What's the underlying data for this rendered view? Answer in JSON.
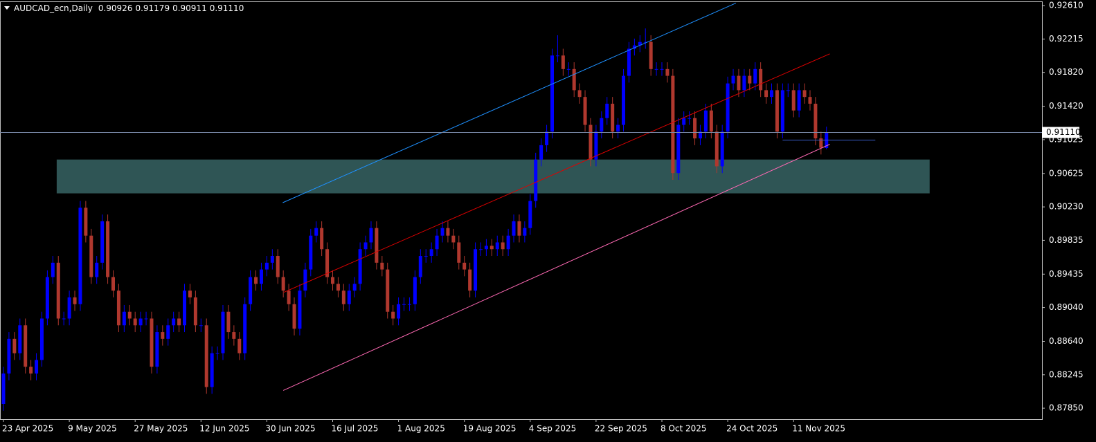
{
  "chart_data": {
    "type": "candlestick",
    "title": "AUDCAD_ecn,Daily",
    "header_values": [
      "0.90926",
      "0.91179",
      "0.90911",
      "0.91110"
    ],
    "bull_color": "#0000ff",
    "bear_color": "#b0382e",
    "categories": [
      "23 Apr 2025",
      null,
      null,
      null,
      null,
      null,
      null,
      null,
      null,
      null,
      null,
      null,
      "9 May 2025",
      null,
      null,
      null,
      null,
      null,
      null,
      null,
      null,
      null,
      null,
      null,
      "27 May 2025",
      null,
      null,
      null,
      null,
      null,
      null,
      null,
      null,
      null,
      null,
      null,
      "12 Jun 2025",
      null,
      null,
      null,
      null,
      null,
      null,
      null,
      null,
      null,
      null,
      null,
      "30 Jun 2025",
      null,
      null,
      null,
      null,
      null,
      null,
      null,
      null,
      null,
      null,
      null,
      "16 Jul 2025",
      null,
      null,
      null,
      null,
      null,
      null,
      null,
      null,
      null,
      null,
      null,
      "1 Aug 2025",
      null,
      null,
      null,
      null,
      null,
      null,
      null,
      null,
      null,
      null,
      null,
      "19 Aug 2025",
      null,
      null,
      null,
      null,
      null,
      null,
      null,
      null,
      null,
      null,
      null,
      "4 Sep 2025",
      null,
      null,
      null,
      null,
      null,
      null,
      null,
      null,
      null,
      null,
      null,
      "22 Sep 2025",
      null,
      null,
      null,
      null,
      null,
      null,
      null,
      null,
      null,
      null,
      null,
      "8 Oct 2025",
      null,
      null,
      null,
      null,
      null,
      null,
      null,
      null,
      null,
      null,
      null,
      "24 Oct 2025",
      null,
      null,
      null,
      null,
      null,
      null,
      null,
      null,
      null,
      null,
      null,
      "11 Nov 2025",
      null,
      null,
      null,
      null,
      null,
      null
    ],
    "open": [
      0.879,
      0.8826,
      0.8867,
      0.885,
      0.8883,
      0.8834,
      0.8826,
      0.8842,
      0.8891,
      0.894,
      0.8957,
      0.8891,
      0.8891,
      0.8916,
      0.8908,
      0.9022,
      0.8989,
      0.894,
      0.8957,
      0.9006,
      0.894,
      0.8924,
      0.8883,
      0.8899,
      0.8891,
      0.8883,
      0.8891,
      0.8891,
      0.8834,
      0.8875,
      0.8867,
      0.8883,
      0.8891,
      0.8883,
      0.8924,
      0.8916,
      0.8883,
      0.8883,
      0.881,
      0.885,
      0.885,
      0.8899,
      0.8875,
      0.8867,
      0.885,
      0.8908,
      0.894,
      0.8932,
      0.8949,
      0.8957,
      0.8965,
      0.894,
      0.8924,
      0.8908,
      0.8879,
      0.8924,
      0.8949,
      0.8989,
      0.8998,
      0.8973,
      0.894,
      0.8932,
      0.8924,
      0.8908,
      0.8924,
      0.8932,
      0.8973,
      0.8981,
      0.8998,
      0.8957,
      0.8949,
      0.8899,
      0.8891,
      0.8908,
      0.8908,
      0.8908,
      0.894,
      0.8965,
      0.8965,
      0.8973,
      0.8989,
      0.8998,
      0.8989,
      0.8981,
      0.8957,
      0.8949,
      0.8924,
      0.8973,
      0.8973,
      0.8977,
      0.8973,
      0.8981,
      0.8973,
      0.8989,
      0.9006,
      0.8989,
      0.8998,
      0.903,
      0.9079,
      0.9096,
      0.9112,
      0.9202,
      0.9202,
      0.9186,
      0.9186,
      0.9161,
      0.9153,
      0.912,
      0.9079,
      0.9112,
      0.9128,
      0.9145,
      0.9112,
      0.912,
      0.9178,
      0.921,
      0.9214,
      0.9218,
      0.9218,
      0.9186,
      0.9186,
      0.9186,
      0.9178,
      0.9063,
      0.912,
      0.9128,
      0.9128,
      0.9104,
      0.9112,
      0.9137,
      0.9112,
      0.9071,
      0.9112,
      0.9169,
      0.9178,
      0.9161,
      0.9178,
      0.9169,
      0.9186,
      0.9161,
      0.9153,
      0.9161,
      0.9112,
      0.9161,
      0.9161,
      0.9137,
      0.9161,
      0.9153,
      0.9145,
      0.9104,
      0.90926
    ],
    "high": [
      0.8834,
      0.8875,
      0.8875,
      0.8891,
      0.8891,
      0.8842,
      0.885,
      0.8899,
      0.8948,
      0.8965,
      0.8965,
      0.8899,
      0.8924,
      0.8924,
      0.903,
      0.903,
      0.8997,
      0.8965,
      0.9014,
      0.9014,
      0.8948,
      0.8932,
      0.8907,
      0.8907,
      0.8899,
      0.8899,
      0.8899,
      0.8899,
      0.8883,
      0.8883,
      0.8891,
      0.8899,
      0.8899,
      0.8932,
      0.8932,
      0.8924,
      0.8891,
      0.8891,
      0.8858,
      0.8858,
      0.8907,
      0.8907,
      0.8883,
      0.8875,
      0.8916,
      0.8948,
      0.8948,
      0.8957,
      0.8965,
      0.8973,
      0.8973,
      0.8948,
      0.8932,
      0.8916,
      0.8932,
      0.8957,
      0.8997,
      0.9006,
      0.9006,
      0.8981,
      0.8948,
      0.894,
      0.8932,
      0.8932,
      0.894,
      0.8981,
      0.8989,
      0.9006,
      0.9006,
      0.8965,
      0.8957,
      0.8907,
      0.8916,
      0.8916,
      0.8916,
      0.8948,
      0.8973,
      0.8973,
      0.8981,
      0.8997,
      0.9006,
      0.9006,
      0.8997,
      0.8989,
      0.8965,
      0.8957,
      0.8981,
      0.8981,
      0.8985,
      0.8985,
      0.8989,
      0.8989,
      0.8997,
      0.9014,
      0.9014,
      0.9006,
      0.9038,
      0.9087,
      0.9104,
      0.912,
      0.921,
      0.9226,
      0.921,
      0.9194,
      0.9194,
      0.9169,
      0.9161,
      0.9128,
      0.912,
      0.9136,
      0.9153,
      0.9153,
      0.9128,
      0.9186,
      0.9218,
      0.9222,
      0.9226,
      0.9234,
      0.9226,
      0.9194,
      0.9194,
      0.9194,
      0.9186,
      0.9128,
      0.9136,
      0.9136,
      0.9136,
      0.912,
      0.9145,
      0.9145,
      0.912,
      0.912,
      0.9177,
      0.9186,
      0.9186,
      0.9186,
      0.9186,
      0.9194,
      0.9194,
      0.9169,
      0.9169,
      0.9169,
      0.9169,
      0.9169,
      0.9169,
      0.9169,
      0.9169,
      0.9161,
      0.9153,
      0.9112,
      0.91179
    ],
    "low": [
      0.8782,
      0.8818,
      0.8842,
      0.8842,
      0.8826,
      0.8818,
      0.8818,
      0.8834,
      0.8883,
      0.8932,
      0.8883,
      0.8883,
      0.8883,
      0.89,
      0.89,
      0.8981,
      0.8932,
      0.8932,
      0.8949,
      0.8932,
      0.8916,
      0.8875,
      0.8875,
      0.8883,
      0.8875,
      0.8875,
      0.8883,
      0.8826,
      0.8826,
      0.8859,
      0.8859,
      0.8875,
      0.8875,
      0.8875,
      0.8908,
      0.8875,
      0.8875,
      0.8802,
      0.8802,
      0.8842,
      0.8842,
      0.8867,
      0.8859,
      0.8842,
      0.8842,
      0.89,
      0.8924,
      0.8924,
      0.8941,
      0.8949,
      0.8932,
      0.8916,
      0.89,
      0.8871,
      0.8871,
      0.8916,
      0.8941,
      0.8981,
      0.8965,
      0.8932,
      0.8924,
      0.8916,
      0.89,
      0.89,
      0.8916,
      0.8924,
      0.8965,
      0.8973,
      0.8949,
      0.8941,
      0.8891,
      0.8883,
      0.8883,
      0.89,
      0.89,
      0.89,
      0.8932,
      0.8957,
      0.8957,
      0.8965,
      0.8981,
      0.8981,
      0.8973,
      0.8949,
      0.8941,
      0.8916,
      0.8916,
      0.8965,
      0.8965,
      0.8965,
      0.8965,
      0.8965,
      0.8965,
      0.8981,
      0.8981,
      0.8981,
      0.899,
      0.9022,
      0.9071,
      0.9088,
      0.9104,
      0.9194,
      0.9178,
      0.9178,
      0.9153,
      0.9145,
      0.9112,
      0.9071,
      0.9071,
      0.9104,
      0.912,
      0.9104,
      0.9104,
      0.9112,
      0.917,
      0.9202,
      0.9206,
      0.921,
      0.9178,
      0.9178,
      0.9178,
      0.917,
      0.9055,
      0.9055,
      0.9112,
      0.912,
      0.9096,
      0.9096,
      0.9104,
      0.9104,
      0.9063,
      0.9063,
      0.9104,
      0.9161,
      0.9153,
      0.9153,
      0.9161,
      0.9161,
      0.9153,
      0.9145,
      0.9145,
      0.9104,
      0.9104,
      0.9153,
      0.9129,
      0.9129,
      0.9145,
      0.9137,
      0.9096,
      0.9085,
      0.90911
    ],
    "close": [
      0.8826,
      0.8867,
      0.885,
      0.8883,
      0.8834,
      0.8826,
      0.8842,
      0.8891,
      0.894,
      0.8957,
      0.8891,
      0.8891,
      0.8916,
      0.8908,
      0.9022,
      0.8989,
      0.894,
      0.8957,
      0.9006,
      0.894,
      0.8924,
      0.8883,
      0.8899,
      0.8891,
      0.8883,
      0.8891,
      0.8891,
      0.8834,
      0.8875,
      0.8867,
      0.8883,
      0.8891,
      0.8883,
      0.8924,
      0.8916,
      0.8883,
      0.8883,
      0.881,
      0.885,
      0.885,
      0.8899,
      0.8875,
      0.8867,
      0.885,
      0.8908,
      0.894,
      0.8932,
      0.8949,
      0.8957,
      0.8965,
      0.894,
      0.8924,
      0.8908,
      0.8879,
      0.8924,
      0.8949,
      0.8989,
      0.8998,
      0.8973,
      0.894,
      0.8932,
      0.8924,
      0.8908,
      0.8924,
      0.8932,
      0.8973,
      0.8981,
      0.8998,
      0.8957,
      0.8949,
      0.8899,
      0.8891,
      0.8908,
      0.8908,
      0.8908,
      0.894,
      0.8965,
      0.8965,
      0.8973,
      0.8989,
      0.8998,
      0.8989,
      0.8981,
      0.8957,
      0.8949,
      0.8924,
      0.8973,
      0.8973,
      0.8977,
      0.8973,
      0.8981,
      0.8973,
      0.8989,
      0.9006,
      0.8989,
      0.8998,
      0.903,
      0.9079,
      0.9096,
      0.9112,
      0.9202,
      0.9202,
      0.9186,
      0.9186,
      0.9161,
      0.9153,
      0.912,
      0.9079,
      0.9112,
      0.9128,
      0.9145,
      0.9112,
      0.912,
      0.9178,
      0.921,
      0.9214,
      0.9218,
      0.9218,
      0.9186,
      0.9186,
      0.9186,
      0.9178,
      0.9063,
      0.912,
      0.9128,
      0.9128,
      0.9104,
      0.9112,
      0.9137,
      0.9112,
      0.9071,
      0.9112,
      0.9169,
      0.9178,
      0.9161,
      0.9178,
      0.9169,
      0.9186,
      0.9161,
      0.9153,
      0.9161,
      0.9112,
      0.9161,
      0.9161,
      0.9137,
      0.9161,
      0.9153,
      0.9145,
      0.9104,
      0.9093,
      0.9111
    ],
    "ylim": [
      0.8772,
      0.9266
    ],
    "yticks": [
      {
        "value": 0.9261,
        "label": "0.92610"
      },
      0.92215,
      {
        "value": 0.9182,
        "label": "0.91820"
      },
      {
        "value": 0.9142,
        "label": "0.91420"
      },
      0.91025,
      0.90625,
      {
        "value": 0.9023,
        "label": "0.90230"
      },
      0.89835,
      0.89435,
      {
        "value": 0.8904,
        "label": "0.89040"
      },
      {
        "value": 0.8864,
        "label": "0.88640"
      },
      0.88245,
      {
        "value": 0.8785,
        "label": "0.87850"
      }
    ],
    "zone": {
      "color": "#2f5555",
      "x": [
        9.7,
        168.8
      ],
      "y": [
        0.9039,
        0.9079
      ]
    },
    "lines": [
      {
        "color": "#1e90ff",
        "x": [
          50.9,
          133.5
        ],
        "y": [
          0.9028,
          0.9264
        ]
      },
      {
        "color": "#e00000",
        "x": [
          51.1,
          150.6
        ],
        "y": [
          0.8922,
          0.9204
        ]
      },
      {
        "color": "#ff69b4",
        "x": [
          51,
          150.6
        ],
        "y": [
          0.8806,
          0.9097
        ]
      },
      {
        "color": "#3a5fcd",
        "x": [
          142,
          158.9
        ],
        "y": [
          0.9102,
          0.9102
        ]
      }
    ],
    "price_line": {
      "value": 0.9111,
      "label": "0.91110",
      "color": "#7a8aa8"
    }
  }
}
